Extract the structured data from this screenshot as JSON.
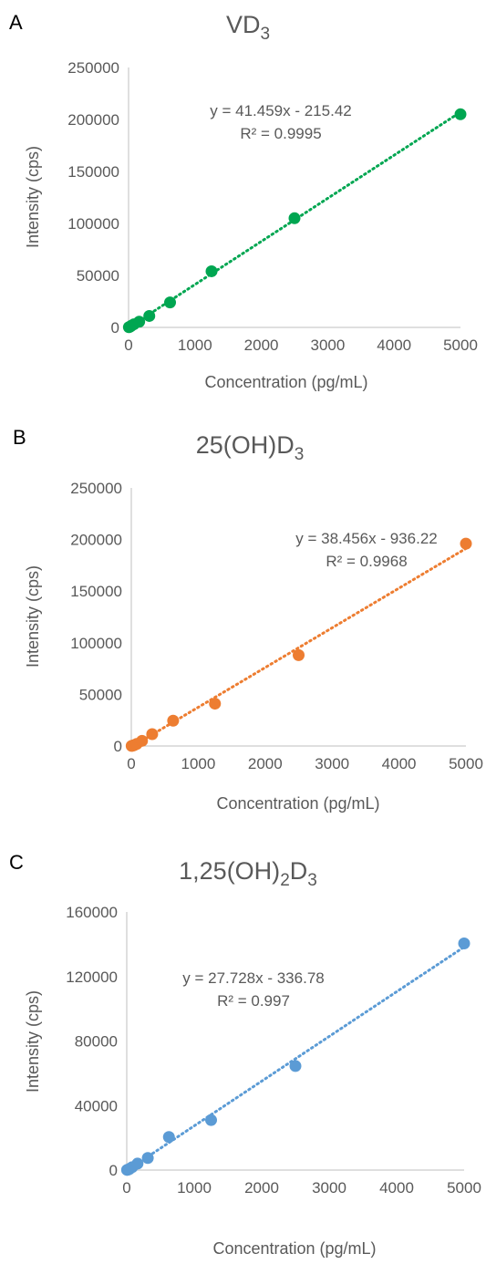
{
  "chart_data": [
    {
      "type": "scatter",
      "panel": "A",
      "title_main": "VD",
      "title_sub": "3",
      "xlabel": "Concentration (pg/mL)",
      "ylabel": "Intensity (cps)",
      "xlim": [
        0,
        5000
      ],
      "ylim": [
        0,
        250000
      ],
      "x_ticks": [
        0,
        1000,
        2000,
        3000,
        4000,
        5000
      ],
      "y_ticks": [
        0,
        50000,
        100000,
        150000,
        200000,
        250000
      ],
      "color": "#00a651",
      "x": [
        5,
        20,
        40,
        80,
        160,
        312,
        625,
        1250,
        2500,
        5000
      ],
      "y": [
        200,
        600,
        1500,
        3000,
        5500,
        11000,
        24000,
        54000,
        105000,
        205000
      ],
      "trendline": {
        "slope": 41.459,
        "intercept": -215.42
      },
      "equation": "y = 41.459x - 215.42",
      "r2": "R² = 0.9995",
      "grid": false,
      "legend": "none"
    },
    {
      "type": "scatter",
      "panel": "B",
      "title_main": "25(OH)D",
      "title_sub": "3",
      "xlabel": "Concentration (pg/mL)",
      "ylabel": "Intensity (cps)",
      "xlim": [
        0,
        5000
      ],
      "ylim": [
        0,
        250000
      ],
      "x_ticks": [
        0,
        1000,
        2000,
        3000,
        4000,
        5000
      ],
      "y_ticks": [
        0,
        50000,
        100000,
        150000,
        200000,
        250000
      ],
      "color": "#ed7d31",
      "x": [
        5,
        20,
        40,
        80,
        160,
        312,
        625,
        1250,
        2500,
        5000
      ],
      "y": [
        100,
        300,
        800,
        2000,
        5000,
        11500,
        24500,
        41000,
        88000,
        196000
      ],
      "trendline": {
        "slope": 38.456,
        "intercept": -936.22
      },
      "equation": "y = 38.456x - 936.22",
      "r2": "R² = 0.9968",
      "grid": false,
      "legend": "none"
    },
    {
      "type": "scatter",
      "panel": "C",
      "title_main": "1,25(OH)",
      "title_sub1": "2",
      "title_main2": "D",
      "title_sub": "3",
      "xlabel": "Concentration (pg/mL)",
      "ylabel": "Intensity (cps)",
      "xlim": [
        0,
        5000
      ],
      "ylim": [
        0,
        160000
      ],
      "x_ticks": [
        0,
        1000,
        2000,
        3000,
        4000,
        5000
      ],
      "y_ticks": [
        0,
        40000,
        80000,
        120000,
        160000
      ],
      "color": "#5b9bd5",
      "x": [
        5,
        20,
        40,
        80,
        160,
        312,
        625,
        1250,
        2500,
        5000
      ],
      "y": [
        100,
        300,
        700,
        1800,
        4000,
        7500,
        20500,
        31000,
        64500,
        140500
      ],
      "trendline": {
        "slope": 27.728,
        "intercept": -336.78
      },
      "equation": "y = 27.728x - 336.78",
      "r2": "R² = 0.997",
      "grid": false,
      "legend": "none"
    }
  ]
}
